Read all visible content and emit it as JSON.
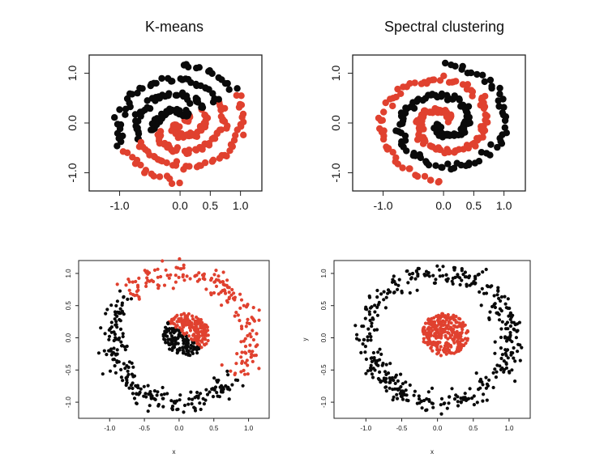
{
  "colors": {
    "red": "#e0412f",
    "black": "#0a0a0a",
    "frame": "#222222"
  },
  "chart_data": [
    {
      "type": "scatter",
      "title": "K-means",
      "dataset": "spirals",
      "assignment": "kmeans",
      "xlim": [
        -1.45,
        1.3
      ],
      "ylim": [
        -1.3,
        1.3
      ],
      "xticks": [
        {
          "v": -1.0,
          "label": "-1.0"
        },
        {
          "v": 0.0,
          "label": "0.0"
        },
        {
          "v": 0.5,
          "label": "0.5"
        },
        {
          "v": 1.0,
          "label": "1.0"
        }
      ],
      "yticks": [
        {
          "v": -1.0,
          "label": "-1.0"
        },
        {
          "v": 0.0,
          "label": "0.0"
        },
        {
          "v": 1.0,
          "label": "1.0"
        }
      ],
      "xlabel": "",
      "ylabel": "",
      "series": [
        {
          "color": "#e0412f",
          "n": 150
        },
        {
          "color": "#0a0a0a",
          "n": 150
        }
      ]
    },
    {
      "type": "scatter",
      "title": "Spectral clustering",
      "dataset": "spirals",
      "assignment": "spectral",
      "xlim": [
        -1.45,
        1.3
      ],
      "ylim": [
        -1.3,
        1.3
      ],
      "xticks": [
        {
          "v": -1.0,
          "label": "-1.0"
        },
        {
          "v": 0.0,
          "label": "0.0"
        },
        {
          "v": 0.5,
          "label": "0.5"
        },
        {
          "v": 1.0,
          "label": "1.0"
        }
      ],
      "yticks": [
        {
          "v": -1.0,
          "label": "-1.0"
        },
        {
          "v": 0.0,
          "label": "0.0"
        },
        {
          "v": 1.0,
          "label": "1.0"
        }
      ],
      "xlabel": "",
      "ylabel": "",
      "series": [
        {
          "color": "#e0412f",
          "n": 150
        },
        {
          "color": "#0a0a0a",
          "n": 150
        }
      ]
    },
    {
      "type": "scatter",
      "title": "",
      "dataset": "rings",
      "assignment": "kmeans",
      "xlim": [
        -1.4,
        1.25
      ],
      "ylim": [
        -1.2,
        1.15
      ],
      "xticks": [
        {
          "v": -1.0,
          "label": "-1.0"
        },
        {
          "v": -0.5,
          "label": "-0.5"
        },
        {
          "v": 0.0,
          "label": "0.0"
        },
        {
          "v": 0.5,
          "label": "0.5"
        },
        {
          "v": 1.0,
          "label": "1.0"
        }
      ],
      "yticks": [
        {
          "v": -1.0,
          "label": "-1.0"
        },
        {
          "v": -0.5,
          "label": "-0.5"
        },
        {
          "v": 0.0,
          "label": "0.0"
        },
        {
          "v": 0.5,
          "label": "0.5"
        },
        {
          "v": 1.0,
          "label": "1.0"
        }
      ],
      "xlabel": "x",
      "ylabel": "",
      "series": [
        {
          "color": "#e0412f",
          "n_outer": 170,
          "n_inner": 170
        },
        {
          "color": "#0a0a0a",
          "n_outer": 230,
          "n_inner": 120
        }
      ]
    },
    {
      "type": "scatter",
      "title": "",
      "dataset": "rings",
      "assignment": "spectral",
      "xlim": [
        -1.4,
        1.25
      ],
      "ylim": [
        -1.2,
        1.15
      ],
      "xticks": [
        {
          "v": -1.0,
          "label": "-1.0"
        },
        {
          "v": -0.5,
          "label": "-0.5"
        },
        {
          "v": 0.0,
          "label": "0.0"
        },
        {
          "v": 0.5,
          "label": "0.5"
        },
        {
          "v": 1.0,
          "label": "1.0"
        }
      ],
      "yticks": [
        {
          "v": -1.0,
          "label": "-1.0"
        },
        {
          "v": -0.5,
          "label": "-0.5"
        },
        {
          "v": 0.0,
          "label": "0.0"
        },
        {
          "v": 0.5,
          "label": "0.5"
        },
        {
          "v": 1.0,
          "label": "1.0"
        }
      ],
      "xlabel": "x",
      "ylabel": "y",
      "series": [
        {
          "color": "#e0412f",
          "n_inner": 290
        },
        {
          "color": "#0a0a0a",
          "n_outer": 400
        }
      ]
    }
  ]
}
